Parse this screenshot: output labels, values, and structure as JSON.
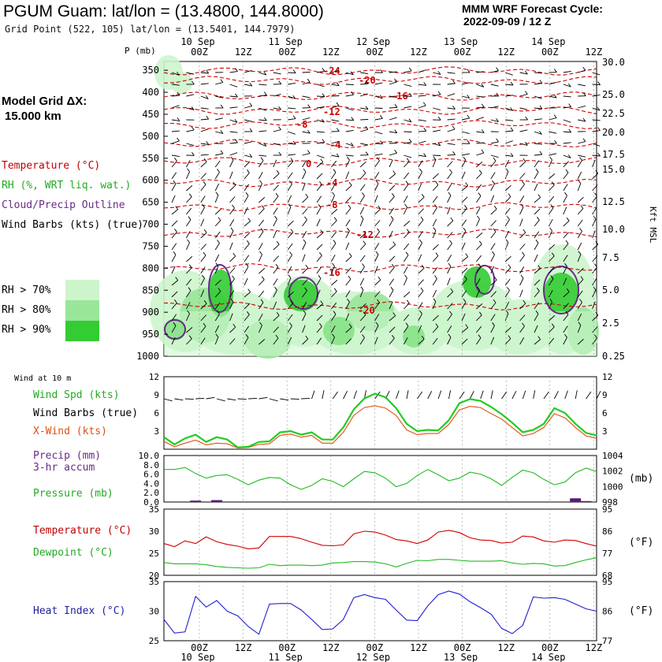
{
  "header": {
    "title": "PGUM Guam:  lat/lon = (13.4800, 144.8000)",
    "subtitle": "Grid Point (522, 105) lat/lon = (13.5401, 144.7979)",
    "cycle_line1": "MMM WRF Forecast Cycle:",
    "cycle_line2": "2022-09-09 / 12  Z"
  },
  "left_legend": {
    "model_grid_line1": "Model Grid ΔX:",
    "model_grid_line2": "15.000 km",
    "temperature": "Temperature (°C)",
    "rh": "RH (%, WRT liq. wat.)",
    "cloud": "Cloud/Precip Outline",
    "wind_barbs": "Wind Barbs (kts) (true)",
    "rh70": "RH > 70%",
    "rh80": "RH > 80%",
    "rh90": "RH > 90%",
    "p_label": "P (mb)",
    "kft_label": "Kft MSL",
    "wind_at_10m": "Wind at 10 m",
    "wind_spd": "Wind Spd (kts)",
    "wind_barbs_true": "Wind Barbs (true)",
    "xwind": "X-Wind (kts)",
    "precip_line1": "Precip (mm)",
    "precip_line2": "3-hr accum",
    "pressure": "Pressure (mb)",
    "mb_unit": "(mb)",
    "temp2": "Temperature (°C)",
    "dewpoint": "Dewpoint (°C)",
    "degf": "(°F)",
    "heat_index": "Heat Index (°C)",
    "degf2": "(°F)"
  },
  "colors": {
    "rh70": "#ccf5cc",
    "rh80": "#99e699",
    "rh90": "#33cc33",
    "temp": "#d00000",
    "wind": "#22cc22",
    "xwind": "#e05010",
    "pressure": "#22bb22",
    "precip": "#5a1a7a",
    "dewpoint": "#22bb22",
    "heat": "#1f1fcf",
    "cloud": "#6a2a8a"
  },
  "time_axis": {
    "top_dates": [
      "10 Sep",
      "11 Sep",
      "12 Sep",
      "13 Sep",
      "14 Sep"
    ],
    "hour_labels": [
      "00Z",
      "12Z",
      "00Z",
      "12Z",
      "00Z",
      "12Z",
      "00Z",
      "12Z",
      "00Z",
      "12Z"
    ]
  },
  "chart_data": [
    {
      "type": "heatmap",
      "name": "cross-section",
      "y_pressure_ticks": [
        "350",
        "400",
        "450",
        "500",
        "550",
        "600",
        "650",
        "700",
        "750",
        "800",
        "850",
        "900",
        "950",
        "1000"
      ],
      "y_height_ticks": [
        "30.0",
        "25.0",
        "22.5",
        "20.0",
        "17.5",
        "15.0",
        "12.5",
        "10.0",
        "7.5",
        "5.0",
        "2.5",
        "0.25"
      ],
      "temp_contour_labels": [
        "-24",
        "-20",
        "-16",
        "-12",
        "-8",
        "-4",
        "0",
        "-4",
        "-8",
        "-12",
        "-16",
        "-20"
      ]
    },
    {
      "type": "line",
      "name": "wind",
      "ylim": [
        0,
        12
      ],
      "yticks": [
        "12",
        "9",
        "6",
        "3"
      ],
      "wind_speed": [
        2.0,
        0.8,
        1.8,
        2.4,
        1.2,
        2.0,
        1.6,
        0.3,
        0.4,
        1.2,
        1.3,
        2.8,
        3.0,
        2.4,
        2.8,
        1.6,
        1.6,
        3.6,
        6.6,
        8.4,
        9.2,
        8.6,
        6.8,
        4.2,
        3.0,
        3.2,
        3.1,
        4.8,
        7.6,
        8.3,
        8.0,
        7.0,
        5.8,
        4.4,
        2.8,
        3.2,
        4.2,
        6.8,
        6.0,
        4.2,
        2.7,
        2.3
      ],
      "xwind": [
        1.3,
        0.4,
        1.0,
        1.5,
        0.7,
        1.0,
        0.9,
        0.2,
        0.3,
        0.8,
        0.9,
        2.3,
        2.5,
        2.0,
        2.3,
        1.0,
        1.0,
        2.8,
        5.6,
        6.9,
        7.2,
        6.8,
        5.6,
        3.2,
        2.4,
        2.6,
        2.6,
        4.1,
        6.5,
        7.1,
        6.9,
        5.9,
        5.0,
        3.6,
        2.2,
        2.6,
        3.6,
        5.9,
        5.2,
        3.6,
        2.2,
        1.8
      ]
    },
    {
      "type": "line",
      "name": "pressure-precip",
      "ylim_left": [
        0,
        10
      ],
      "left_ticks": [
        "10.0",
        "8.0",
        "6.0",
        "4.0",
        "2.0",
        "0.0"
      ],
      "right_ticks": [
        "1004",
        "1002",
        "1000",
        "998"
      ],
      "pressure": [
        1001.9,
        1001.9,
        1002.2,
        1001.3,
        1000.6,
        1001.0,
        1001.1,
        1000.4,
        999.6,
        1000.3,
        1000.7,
        1000.6,
        999.6,
        998.9,
        999.5,
        1000.5,
        1000.1,
        999.3,
        1000.5,
        1001.6,
        1001.4,
        1000.6,
        999.3,
        999.8,
        1001.0,
        1001.9,
        1001.1,
        1000.2,
        1000.6,
        1001.5,
        1001.2,
        1000.5,
        999.5,
        1000.7,
        1001.8,
        1001.4,
        1000.4,
        999.6,
        1000.0,
        1001.4,
        1002.1,
        1001.6
      ],
      "precip": [
        0,
        0,
        0,
        0.3,
        0,
        0.4,
        0,
        0,
        0,
        0,
        0,
        0,
        0,
        0,
        0,
        0,
        0,
        0,
        0,
        0,
        0,
        0,
        0,
        0,
        0,
        0,
        0,
        0,
        0,
        0,
        0,
        0,
        0,
        0,
        0,
        0,
        0,
        0,
        0,
        0.8,
        0.2,
        0
      ]
    },
    {
      "type": "line",
      "name": "temperature-dewpoint",
      "ylim": [
        20,
        35
      ],
      "left_ticks": [
        "35",
        "30",
        "25",
        "20"
      ],
      "right_ticks": [
        "95",
        "86",
        "77",
        "68"
      ],
      "temperature": [
        27.2,
        26.5,
        27.8,
        27.2,
        28.7,
        27.6,
        27.0,
        26.6,
        26.0,
        26.2,
        28.8,
        28.8,
        28.8,
        28.3,
        27.5,
        26.8,
        26.7,
        26.9,
        29.4,
        30.0,
        29.8,
        29.1,
        28.1,
        27.8,
        27.2,
        28.0,
        29.8,
        30.2,
        29.7,
        28.5,
        28.0,
        27.9,
        27.3,
        27.5,
        28.9,
        28.7,
        27.8,
        27.5,
        28.0,
        27.9,
        27.2,
        26.6
      ],
      "dewpoint": [
        22.9,
        22.6,
        22.6,
        22.6,
        22.4,
        22.0,
        21.8,
        21.7,
        21.6,
        21.7,
        22.5,
        22.2,
        22.3,
        22.3,
        22.2,
        22.3,
        22.8,
        22.9,
        23.1,
        23.1,
        23.0,
        22.6,
        21.9,
        22.7,
        23.4,
        23.3,
        23.6,
        23.6,
        23.4,
        23.2,
        23.2,
        23.2,
        23.3,
        22.8,
        22.5,
        22.7,
        22.6,
        22.1,
        22.2,
        22.9,
        23.5,
        24.0
      ]
    },
    {
      "type": "line",
      "name": "heat-index",
      "ylim": [
        25,
        35
      ],
      "left_ticks": [
        "35",
        "30",
        "25"
      ],
      "right_ticks": [
        "95",
        "86",
        "77"
      ],
      "heat_index": [
        28.6,
        26.3,
        26.5,
        32.5,
        30.7,
        31.8,
        30.0,
        29.2,
        27.4,
        26.1,
        31.2,
        31.3,
        31.3,
        30.2,
        28.6,
        26.9,
        27.0,
        28.6,
        32.3,
        32.8,
        32.3,
        32.0,
        30.2,
        28.5,
        28.4,
        30.9,
        32.8,
        33.4,
        32.9,
        31.6,
        30.6,
        29.5,
        27.1,
        26.2,
        27.6,
        32.4,
        32.2,
        32.3,
        32.0,
        31.2,
        30.4,
        30.0
      ]
    }
  ]
}
